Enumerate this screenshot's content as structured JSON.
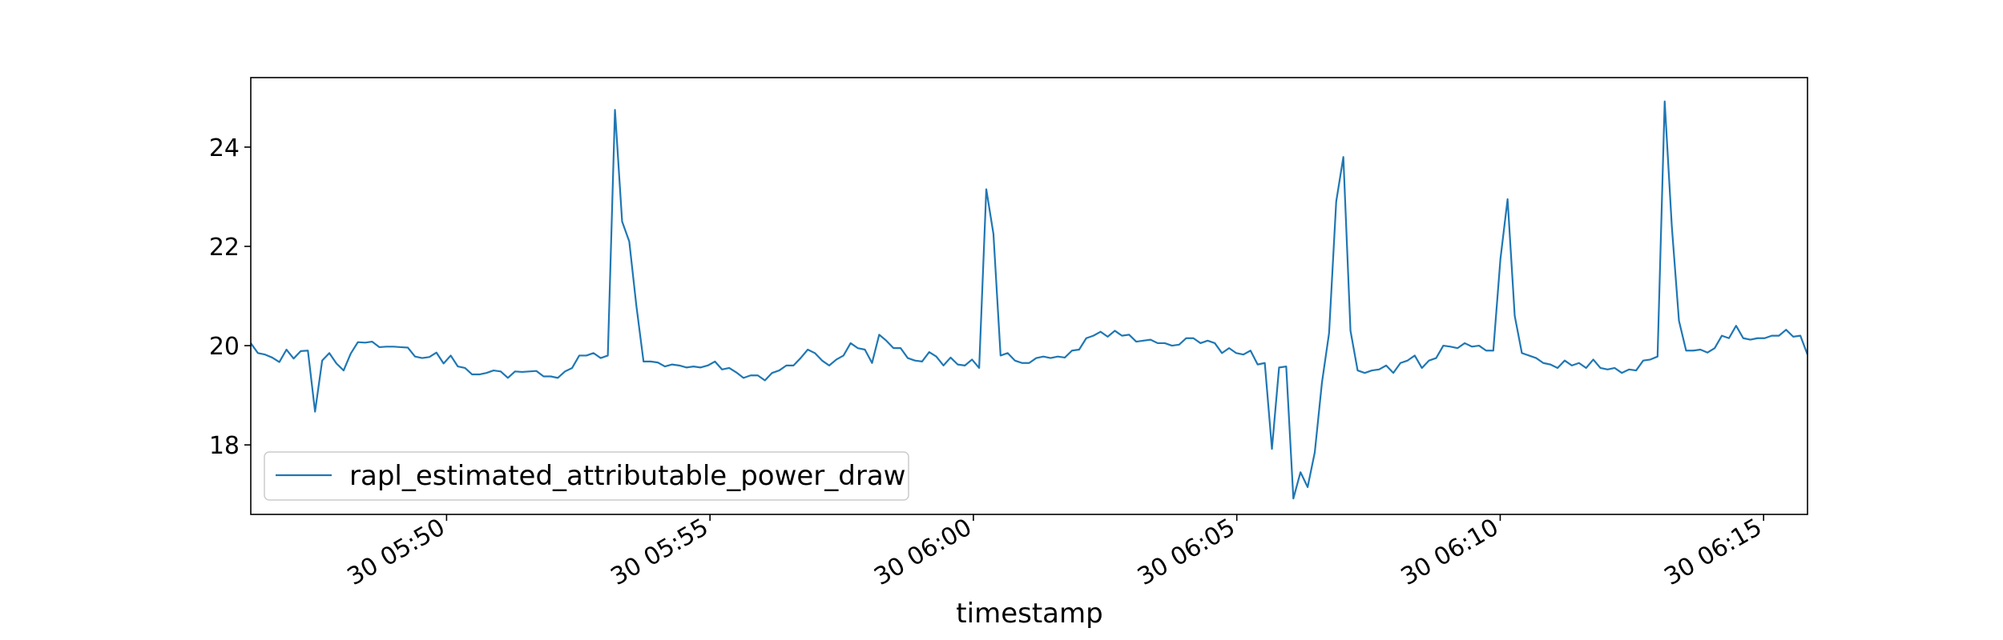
{
  "chart_data": {
    "type": "line",
    "title": "",
    "xlabel": "timestamp",
    "ylabel": "",
    "x_start": "30 05:46:17",
    "x_end": "30 06:15:50",
    "xlim": [
      "30 05:46:17",
      "30 06:15:50"
    ],
    "ylim": [
      16.6,
      25.4
    ],
    "x_ticks": [
      {
        "label": "30 05:50",
        "value": "30 05:50:00"
      },
      {
        "label": "30 05:55",
        "value": "30 05:55:00"
      },
      {
        "label": "30 06:00",
        "value": "30 06:00:00"
      },
      {
        "label": "30 06:05",
        "value": "30 06:05:00"
      },
      {
        "label": "30 06:10",
        "value": "30 06:10:00"
      },
      {
        "label": "30 06:15",
        "value": "30 06:15:00"
      }
    ],
    "y_ticks": [
      18,
      20,
      22,
      24
    ],
    "grid": false,
    "legend": {
      "placement": "lower-left"
    },
    "color": "#1f77b4",
    "series": [
      {
        "name": "rapl_estimated_attributable_power_draw",
        "values": [
          20.05,
          19.85,
          19.82,
          19.76,
          19.67,
          19.92,
          19.74,
          19.89,
          19.9,
          18.67,
          19.7,
          19.85,
          19.64,
          19.5,
          19.84,
          20.07,
          20.06,
          20.08,
          19.97,
          19.98,
          19.98,
          19.97,
          19.96,
          19.78,
          19.75,
          19.77,
          19.86,
          19.64,
          19.8,
          19.58,
          19.55,
          19.42,
          19.42,
          19.45,
          19.5,
          19.48,
          19.35,
          19.48,
          19.47,
          19.48,
          19.49,
          19.38,
          19.38,
          19.35,
          19.48,
          19.55,
          19.8,
          19.8,
          19.85,
          19.75,
          19.8,
          24.75,
          22.5,
          22.1,
          20.8,
          19.68,
          19.68,
          19.66,
          19.58,
          19.62,
          19.6,
          19.56,
          19.58,
          19.56,
          19.6,
          19.68,
          19.52,
          19.55,
          19.46,
          19.35,
          19.4,
          19.4,
          19.3,
          19.45,
          19.5,
          19.6,
          19.6,
          19.75,
          19.92,
          19.85,
          19.7,
          19.6,
          19.72,
          19.8,
          20.05,
          19.95,
          19.92,
          19.65,
          20.22,
          20.1,
          19.95,
          19.95,
          19.75,
          19.7,
          19.68,
          19.87,
          19.78,
          19.6,
          19.76,
          19.62,
          19.6,
          19.72,
          19.55,
          23.15,
          22.25,
          19.8,
          19.85,
          19.7,
          19.65,
          19.65,
          19.75,
          19.78,
          19.75,
          19.78,
          19.76,
          19.9,
          19.92,
          20.15,
          20.2,
          20.28,
          20.18,
          20.3,
          20.2,
          20.22,
          20.08,
          20.1,
          20.12,
          20.05,
          20.05,
          20.0,
          20.02,
          20.15,
          20.15,
          20.05,
          20.1,
          20.05,
          19.85,
          19.95,
          19.85,
          19.82,
          19.9,
          19.62,
          19.65,
          17.92,
          19.56,
          19.58,
          16.92,
          17.45,
          17.15,
          17.85,
          19.25,
          20.25,
          22.9,
          23.8,
          20.3,
          19.5,
          19.45,
          19.5,
          19.52,
          19.6,
          19.45,
          19.65,
          19.7,
          19.8,
          19.55,
          19.7,
          19.75,
          20.0,
          19.98,
          19.95,
          20.05,
          19.98,
          20.0,
          19.9,
          19.9,
          21.75,
          22.95,
          20.6,
          19.85,
          19.8,
          19.75,
          19.65,
          19.62,
          19.55,
          19.7,
          19.6,
          19.65,
          19.55,
          19.72,
          19.55,
          19.52,
          19.55,
          19.45,
          19.52,
          19.5,
          19.7,
          19.72,
          19.78,
          24.92,
          22.4,
          20.5,
          19.9,
          19.9,
          19.92,
          19.86,
          19.95,
          20.2,
          20.15,
          20.4,
          20.15,
          20.12,
          20.15,
          20.15,
          20.2,
          20.2,
          20.32,
          20.18,
          20.2,
          19.82
        ]
      }
    ]
  }
}
